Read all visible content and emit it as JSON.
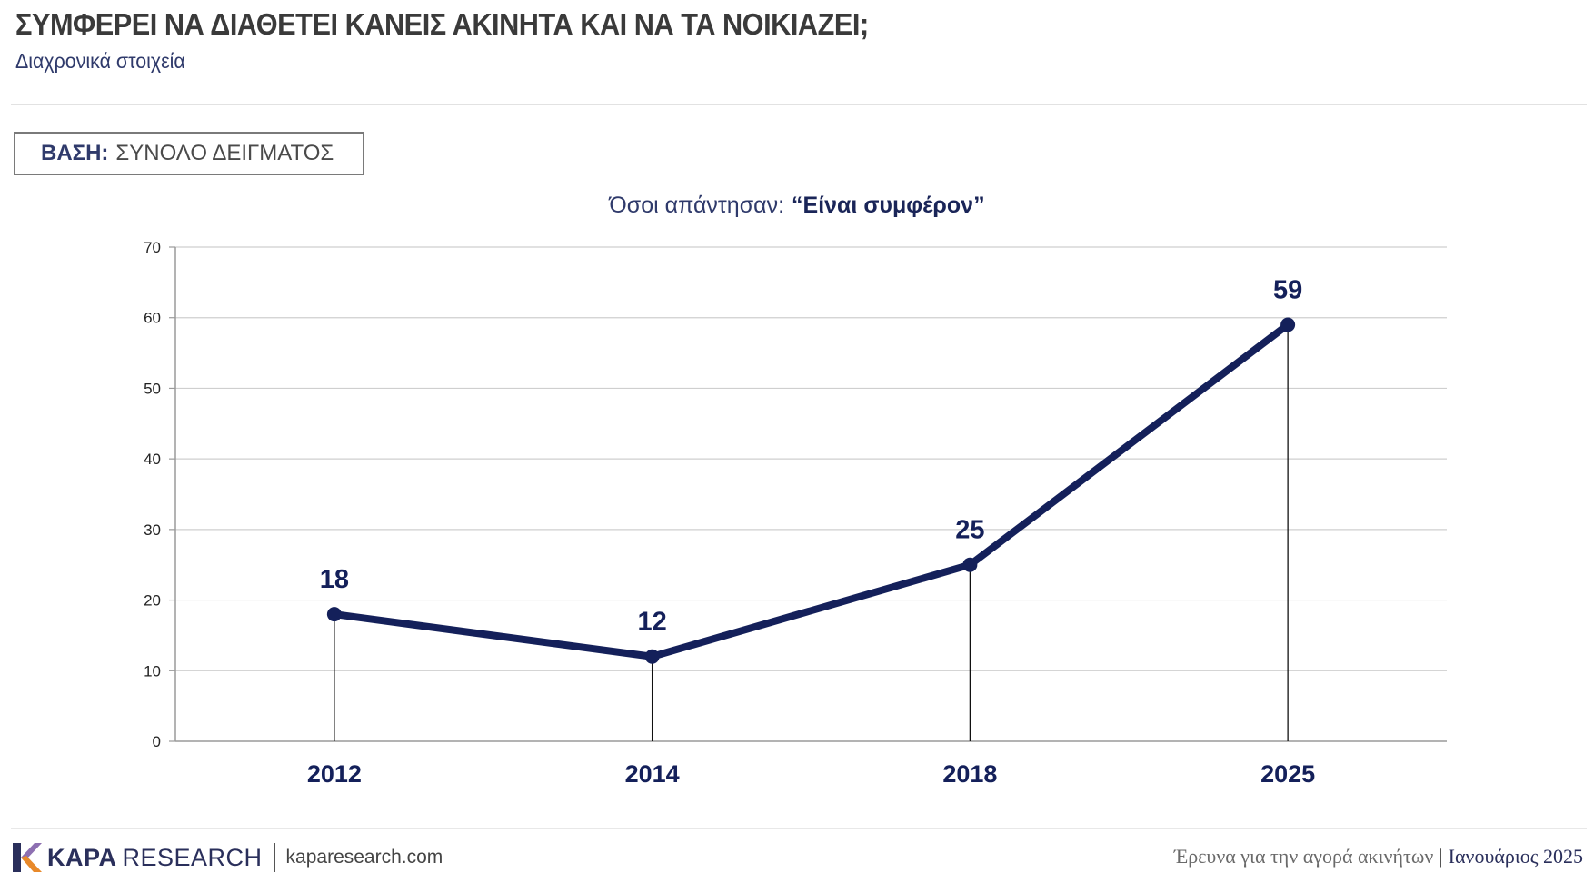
{
  "header": {
    "title": "ΣΥΜΦΕΡΕΙ ΝΑ ΔΙΑΘΕΤΕΙ ΚΑΝΕΙΣ ΑΚΙΝΗΤΑ ΚΑΙ ΝΑ ΤΑ ΝΟΙΚΙΑΖΕΙ;",
    "subtitle": "Διαχρονικά στοιχεία"
  },
  "base": {
    "label": "ΒΑΣΗ:",
    "value": "ΣΥΝΟΛΟ ΔΕΙΓΜΑΤΟΣ"
  },
  "chart_heading": {
    "prefix": "Όσοι απάντησαν:",
    "quote": "“Είναι συμφέρον”"
  },
  "chart_data": {
    "type": "line",
    "title": "",
    "xlabel": "",
    "ylabel": "",
    "categories": [
      "2012",
      "2014",
      "2018",
      "2025"
    ],
    "series": [
      {
        "values": [
          18,
          12,
          25,
          59
        ]
      }
    ],
    "data_labels": [
      "18",
      "12",
      "25",
      "59"
    ],
    "ylim": [
      0,
      70
    ],
    "yticks": [
      0,
      10,
      20,
      30,
      40,
      50,
      60,
      70
    ],
    "grid": true,
    "drop_lines": true,
    "line_color": "#14205a",
    "grid_color": "#cfcfcf"
  },
  "footer": {
    "brand_bold": "KAPA",
    "brand_light": "RESEARCH",
    "website": "kaparesearch.com",
    "survey": "Έρευνα για την αγορά ακινήτων",
    "separator": "|",
    "date": "Ιανουάριος 2025"
  },
  "colors": {
    "accent_navy": "#14205a",
    "logo_orange": "#e8892a",
    "logo_purple": "#8d6fb1",
    "logo_navy": "#2a2f5b"
  }
}
